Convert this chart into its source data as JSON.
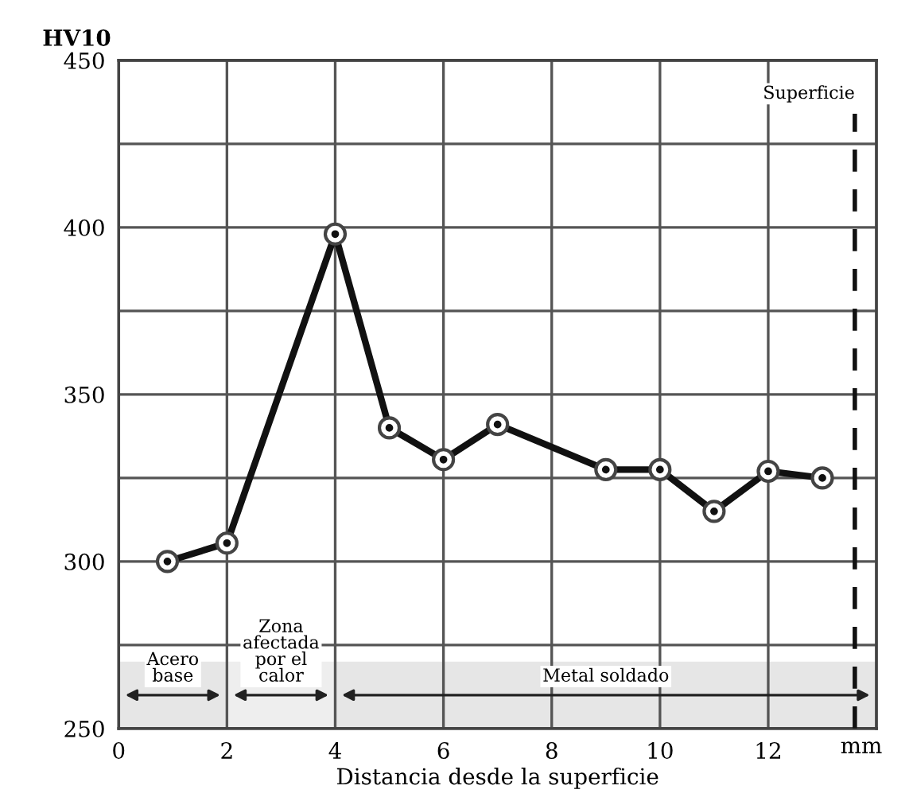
{
  "chart_data": {
    "type": "line",
    "ylabel": "HV10",
    "xlabel": "Distancia desde la superficie",
    "x": [
      0.9,
      2,
      4,
      5,
      6,
      7,
      9,
      10,
      11,
      12,
      13
    ],
    "series": [
      {
        "color": "#111111",
        "values": [
          300,
          305.5,
          398,
          340,
          330.5,
          341,
          327.5,
          327.5,
          315,
          327,
          325
        ]
      }
    ],
    "xlim": [
      0,
      14
    ],
    "xticks": [
      0,
      2,
      4,
      6,
      8,
      10,
      12,
      {
        "value": 14,
        "label": null
      }
    ],
    "ylim": [
      250,
      450
    ],
    "yticks": [
      250,
      {
        "value": 275,
        "label": null
      },
      300,
      {
        "value": 325,
        "label": null
      },
      350,
      {
        "value": 375,
        "label": null
      },
      400,
      {
        "value": 425,
        "label": null
      },
      450
    ],
    "grid": true,
    "marker": "circle",
    "line_style": "solid",
    "legend": false,
    "ref_lines": [
      {
        "axis": "x",
        "value": 13.6,
        "label": "Superficie",
        "line_style": "dashed",
        "color": "#111111"
      }
    ],
    "bands": [
      {
        "axis": "x",
        "from": 0,
        "to": 2,
        "label": "Acero\nbase",
        "color": "#e6e6e6"
      },
      {
        "axis": "x",
        "from": 2,
        "to": 4,
        "label": "Zona\nafectada\npor el\ncalor",
        "color": "#eeeeee"
      },
      {
        "axis": "x",
        "from": 4,
        "to": 14,
        "label": "Metal soldado",
        "color": "#e6e6e6"
      }
    ],
    "annotations": [
      "mm"
    ]
  }
}
